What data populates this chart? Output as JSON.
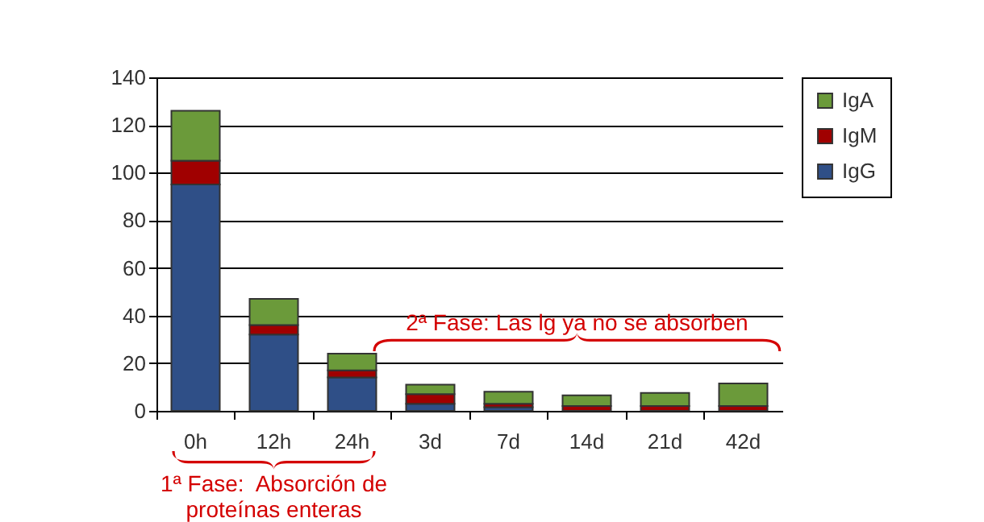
{
  "chart_data": {
    "type": "bar",
    "stacked": true,
    "categories": [
      "0h",
      "12h",
      "24h",
      "3d",
      "7d",
      "14d",
      "21d",
      "42d"
    ],
    "series": [
      {
        "name": "IgG",
        "color": "#2f4f87",
        "values": [
          95,
          32,
          14,
          3,
          1.5,
          null,
          null,
          null
        ]
      },
      {
        "name": "IgM",
        "color": "#a00000",
        "values": [
          10,
          4,
          3,
          4,
          1.5,
          2,
          2,
          2
        ]
      },
      {
        "name": "IgA",
        "color": "#6b9a3a",
        "values": [
          21,
          11,
          7,
          4,
          5,
          4.5,
          5.5,
          9.5
        ]
      }
    ],
    "ylim": [
      0,
      140
    ],
    "yticks": [
      0,
      20,
      40,
      60,
      80,
      100,
      120,
      140
    ],
    "grid": "y",
    "legend": "right",
    "annotations": [
      "1ª Fase:  Absorción de\nproteínas enteras",
      "2ª Fase: Las lg ya no se absorben"
    ]
  }
}
